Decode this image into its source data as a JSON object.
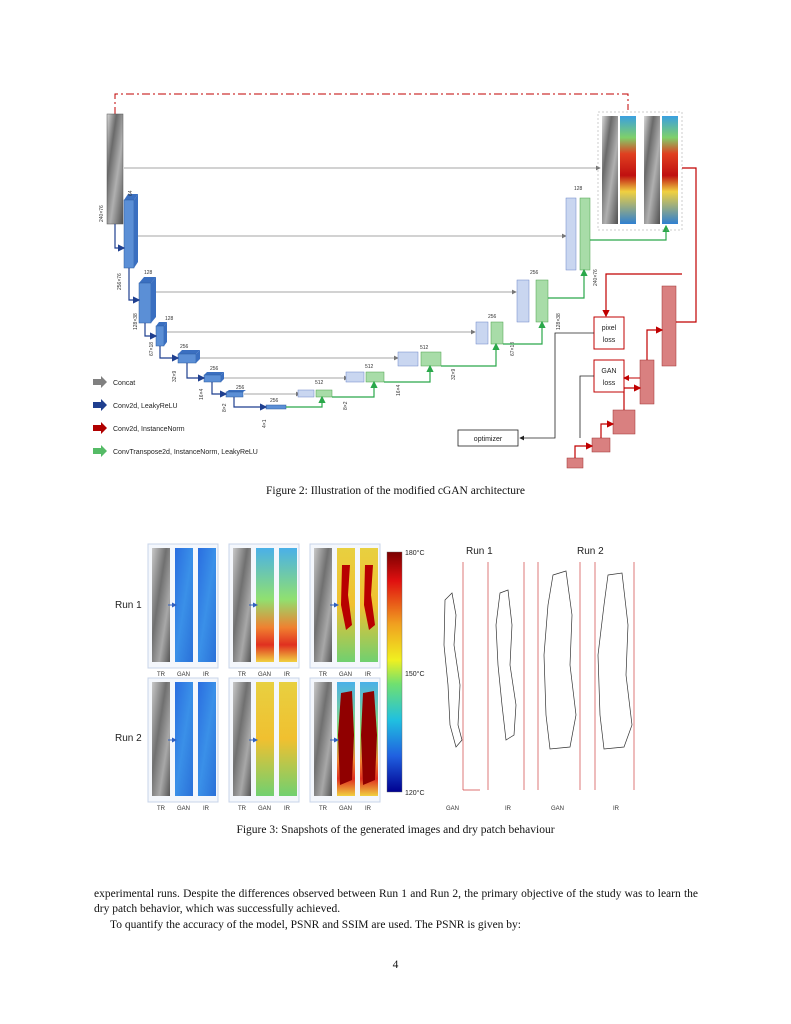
{
  "figure2": {
    "caption": "Figure 2: Illustration of the modified cGAN architecture",
    "legend": [
      {
        "label": "Concat",
        "color": "#808080"
      },
      {
        "label": "Conv2d, LeakyReLU",
        "color": "#1f3f8f"
      },
      {
        "label": "Conv2d, InstanceNorm",
        "color": "#b00000"
      },
      {
        "label": "ConvTranspose2d, InstanceNorm, LeakyReLU",
        "color": "#55bb66"
      }
    ],
    "encoder_channels": [
      "64",
      "128",
      "128",
      "256",
      "256",
      "256",
      "256"
    ],
    "encoder_sizes": [
      "240×76",
      "256×76",
      "128×38",
      "67×18",
      "32×9",
      "16×4",
      "8×2",
      "4×1"
    ],
    "decoder_channels": [
      "128",
      "256",
      "256",
      "512",
      "512",
      "512"
    ],
    "decoder_sizes": [
      "240×76",
      "128×38",
      "67×18",
      "32×9",
      "16×4",
      "8×2"
    ],
    "boxes": {
      "pixel_loss": "pixel loss",
      "gan_loss": "GAN loss",
      "optimizer": "optimizer"
    },
    "colors": {
      "encoder": "#5b8fd6",
      "decoder_blue": "#b8c8ec",
      "decoder_green": "#9fd4a0",
      "discriminator": "#c05050",
      "red_line": "#c00000",
      "green_line": "#2aa84a"
    }
  },
  "figure3": {
    "caption": "Figure 3: Snapshots of the generated images and dry patch behaviour",
    "row_labels": [
      "Run 1",
      "Run 2"
    ],
    "col_labels": [
      "TR",
      "GAN",
      "IR"
    ],
    "colorbar": {
      "max": "180°C",
      "mid": "150°C",
      "min": "120°C"
    },
    "contour_headers": [
      "Run 1",
      "Run 2"
    ],
    "contour_labels": [
      "GAN",
      "IR",
      "GAN",
      "IR"
    ]
  },
  "body": {
    "paragraph1": "experimental runs. Despite the differences observed between Run 1 and Run 2, the primary objective of the study was to learn the dry patch behavior, which was successfully achieved.",
    "paragraph2": "To quantify the accuracy of the model, PSNR and SSIM are used. The PSNR is given by:"
  },
  "page_number": "4"
}
